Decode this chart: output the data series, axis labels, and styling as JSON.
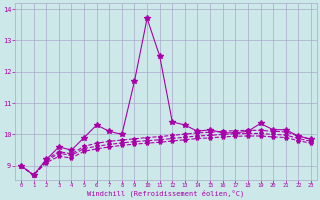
{
  "xlabel": "Windchill (Refroidissement éolien,°C)",
  "bg_color": "#cce8e8",
  "grid_color": "#aaaacc",
  "line_color": "#aa00aa",
  "x_data": [
    0,
    1,
    2,
    3,
    4,
    5,
    6,
    7,
    8,
    9,
    10,
    11,
    12,
    13,
    14,
    15,
    16,
    17,
    18,
    19,
    20,
    21,
    22,
    23
  ],
  "series": [
    [
      9.0,
      8.7,
      9.2,
      9.6,
      9.5,
      9.9,
      10.3,
      10.1,
      10.0,
      11.7,
      13.7,
      12.5,
      10.4,
      10.3,
      10.1,
      10.15,
      10.05,
      10.05,
      10.1,
      10.35,
      10.15,
      10.15,
      9.95,
      9.85
    ],
    [
      9.0,
      8.7,
      9.2,
      9.45,
      9.38,
      9.62,
      9.72,
      9.78,
      9.82,
      9.86,
      9.9,
      9.93,
      9.97,
      10.01,
      10.05,
      10.07,
      10.1,
      10.12,
      10.13,
      10.13,
      10.1,
      10.08,
      9.95,
      9.84
    ],
    [
      9.0,
      8.7,
      9.15,
      9.4,
      9.33,
      9.55,
      9.62,
      9.68,
      9.73,
      9.77,
      9.8,
      9.83,
      9.87,
      9.91,
      9.95,
      9.97,
      10.0,
      10.02,
      10.03,
      10.03,
      10.0,
      9.98,
      9.87,
      9.78
    ],
    [
      9.0,
      8.7,
      9.1,
      9.3,
      9.25,
      9.46,
      9.54,
      9.6,
      9.65,
      9.69,
      9.72,
      9.75,
      9.79,
      9.83,
      9.87,
      9.89,
      9.92,
      9.94,
      9.95,
      9.95,
      9.92,
      9.9,
      9.8,
      9.72
    ]
  ],
  "ylim": [
    8.55,
    14.2
  ],
  "yticks": [
    9,
    10,
    11,
    12,
    13,
    14
  ],
  "xlim": [
    -0.5,
    23.5
  ],
  "xticks": [
    0,
    1,
    2,
    3,
    4,
    5,
    6,
    7,
    8,
    9,
    10,
    11,
    12,
    13,
    14,
    15,
    16,
    17,
    18,
    19,
    20,
    21,
    22,
    23
  ],
  "markersize": 3,
  "linewidth": 0.8
}
